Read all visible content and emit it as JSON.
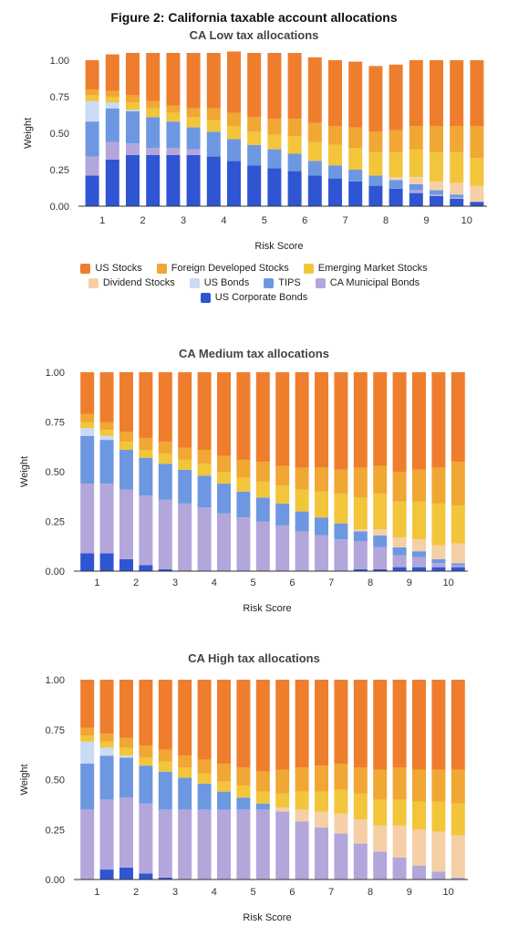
{
  "figure_title": "Figure 2: California taxable account allocations",
  "legend": [
    {
      "name": "US Stocks",
      "color": "#EE7E2E"
    },
    {
      "name": "Foreign Developed Stocks",
      "color": "#F0A733"
    },
    {
      "name": "Emerging Market Stocks",
      "color": "#F2C53B"
    },
    {
      "name": "Dividend Stocks",
      "color": "#F5CFA5"
    },
    {
      "name": "US Bonds",
      "color": "#CBDAF5"
    },
    {
      "name": "TIPS",
      "color": "#6D98E1"
    },
    {
      "name": "CA Municipal Bonds",
      "color": "#B3A6DB"
    },
    {
      "name": "US Corporate Bonds",
      "color": "#2F55D3"
    }
  ],
  "chart_data": [
    {
      "type": "bar",
      "stacked": true,
      "title": "CA Low tax allocations",
      "xlabel": "Risk Score",
      "ylabel": "Weight",
      "ylim": [
        0,
        1
      ],
      "yticks": [
        "0.00",
        "0.25",
        "0.50",
        "0.75",
        "1.00"
      ],
      "xtick_labels": [
        "1",
        "2",
        "3",
        "4",
        "5",
        "6",
        "7",
        "8",
        "9",
        "10"
      ],
      "bar_count": 20,
      "series": [
        {
          "name": "US Corporate Bonds",
          "values": [
            0.21,
            0.32,
            0.35,
            0.35,
            0.35,
            0.35,
            0.34,
            0.31,
            0.28,
            0.26,
            0.24,
            0.21,
            0.19,
            0.17,
            0.14,
            0.12,
            0.09,
            0.07,
            0.05,
            0.03
          ]
        },
        {
          "name": "CA Municipal Bonds",
          "values": [
            0.13,
            0.12,
            0.08,
            0.05,
            0.05,
            0.04,
            0,
            0,
            0,
            0,
            0,
            0,
            0,
            0,
            0,
            0,
            0.02,
            0.01,
            0.01,
            0
          ]
        },
        {
          "name": "TIPS",
          "values": [
            0.24,
            0.23,
            0.22,
            0.21,
            0.18,
            0.15,
            0.17,
            0.15,
            0.14,
            0.13,
            0.12,
            0.1,
            0.09,
            0.08,
            0.07,
            0.06,
            0.04,
            0.03,
            0.02,
            0
          ]
        },
        {
          "name": "US Bonds",
          "values": [
            0.14,
            0.04,
            0.01,
            0,
            0,
            0,
            0,
            0,
            0,
            0,
            0,
            0,
            0,
            0,
            0,
            0,
            0,
            0,
            0,
            0
          ]
        },
        {
          "name": "Dividend Stocks",
          "values": [
            0,
            0,
            0,
            0,
            0,
            0,
            0,
            0,
            0,
            0,
            0,
            0,
            0,
            0,
            0,
            0.02,
            0.05,
            0.06,
            0.08,
            0.11
          ]
        },
        {
          "name": "Emerging Market Stocks",
          "values": [
            0.04,
            0.04,
            0.05,
            0.06,
            0.06,
            0.07,
            0.08,
            0.09,
            0.09,
            0.1,
            0.12,
            0.13,
            0.14,
            0.15,
            0.16,
            0.17,
            0.19,
            0.2,
            0.21,
            0.19
          ]
        },
        {
          "name": "Foreign Developed Stocks",
          "values": [
            0.04,
            0.04,
            0.05,
            0.05,
            0.05,
            0.06,
            0.08,
            0.09,
            0.1,
            0.11,
            0.12,
            0.13,
            0.13,
            0.14,
            0.14,
            0.15,
            0.16,
            0.18,
            0.18,
            0.22
          ]
        },
        {
          "name": "US Stocks",
          "values": [
            0.2,
            0.25,
            0.29,
            0.33,
            0.36,
            0.38,
            0.38,
            0.42,
            0.44,
            0.45,
            0.45,
            0.45,
            0.45,
            0.45,
            0.45,
            0.45,
            0.45,
            0.45,
            0.45,
            0.45
          ]
        }
      ]
    },
    {
      "type": "bar",
      "stacked": true,
      "title": "CA Medium tax allocations",
      "xlabel": "Risk Score",
      "ylabel": "Weight",
      "ylim": [
        0,
        1
      ],
      "yticks": [
        "0.00",
        "0.25",
        "0.50",
        "0.75",
        "1.00"
      ],
      "xtick_labels": [
        "1",
        "2",
        "3",
        "4",
        "5",
        "6",
        "7",
        "8",
        "9",
        "10"
      ],
      "bar_count": 20,
      "series": [
        {
          "name": "US Corporate Bonds",
          "values": [
            0.09,
            0.09,
            0.06,
            0.03,
            0.01,
            0,
            0,
            0,
            0,
            0,
            0,
            0,
            0,
            0,
            0.01,
            0.01,
            0.02,
            0.02,
            0.02,
            0.02
          ]
        },
        {
          "name": "CA Municipal Bonds",
          "values": [
            0.35,
            0.35,
            0.35,
            0.35,
            0.35,
            0.34,
            0.32,
            0.29,
            0.27,
            0.25,
            0.23,
            0.2,
            0.18,
            0.16,
            0.14,
            0.11,
            0.06,
            0.05,
            0.02,
            0.01
          ]
        },
        {
          "name": "TIPS",
          "values": [
            0.24,
            0.22,
            0.2,
            0.19,
            0.18,
            0.17,
            0.16,
            0.15,
            0.13,
            0.12,
            0.11,
            0.1,
            0.09,
            0.08,
            0.05,
            0.06,
            0.04,
            0.03,
            0.02,
            0.01
          ]
        },
        {
          "name": "US Bonds",
          "values": [
            0.04,
            0.02,
            0,
            0,
            0,
            0,
            0,
            0,
            0,
            0,
            0,
            0,
            0,
            0,
            0,
            0,
            0,
            0,
            0,
            0
          ]
        },
        {
          "name": "Dividend Stocks",
          "values": [
            0,
            0,
            0,
            0,
            0,
            0,
            0,
            0,
            0,
            0,
            0,
            0,
            0,
            0,
            0.01,
            0.03,
            0.05,
            0.06,
            0.07,
            0.1
          ]
        },
        {
          "name": "Emerging Market Stocks",
          "values": [
            0.03,
            0.03,
            0.04,
            0.04,
            0.05,
            0.05,
            0.06,
            0.06,
            0.07,
            0.08,
            0.09,
            0.11,
            0.13,
            0.15,
            0.16,
            0.18,
            0.18,
            0.19,
            0.21,
            0.19
          ]
        },
        {
          "name": "Foreign Developed Stocks",
          "values": [
            0.04,
            0.04,
            0.05,
            0.06,
            0.06,
            0.06,
            0.07,
            0.08,
            0.09,
            0.1,
            0.1,
            0.11,
            0.12,
            0.12,
            0.15,
            0.14,
            0.15,
            0.16,
            0.18,
            0.22
          ]
        },
        {
          "name": "US Stocks",
          "values": [
            0.21,
            0.25,
            0.3,
            0.33,
            0.35,
            0.38,
            0.39,
            0.42,
            0.44,
            0.45,
            0.47,
            0.48,
            0.48,
            0.49,
            0.48,
            0.47,
            0.5,
            0.49,
            0.48,
            0.45
          ]
        }
      ]
    },
    {
      "type": "bar",
      "stacked": true,
      "title": "CA High tax allocations",
      "xlabel": "Risk Score",
      "ylabel": "Weight",
      "ylim": [
        0,
        1
      ],
      "yticks": [
        "0.00",
        "0.25",
        "0.50",
        "0.75",
        "1.00"
      ],
      "xtick_labels": [
        "1",
        "2",
        "3",
        "4",
        "5",
        "6",
        "7",
        "8",
        "9",
        "10"
      ],
      "bar_count": 20,
      "series": [
        {
          "name": "US Corporate Bonds",
          "values": [
            0,
            0.05,
            0.06,
            0.03,
            0.01,
            0,
            0,
            0,
            0,
            0,
            0,
            0,
            0,
            0,
            0,
            0,
            0,
            0,
            0,
            0
          ]
        },
        {
          "name": "CA Municipal Bonds",
          "values": [
            0.35,
            0.35,
            0.35,
            0.35,
            0.34,
            0.35,
            0.35,
            0.35,
            0.35,
            0.35,
            0.34,
            0.29,
            0.26,
            0.23,
            0.18,
            0.14,
            0.11,
            0.07,
            0.04,
            0.01
          ]
        },
        {
          "name": "TIPS",
          "values": [
            0.23,
            0.22,
            0.2,
            0.19,
            0.19,
            0.16,
            0.13,
            0.09,
            0.06,
            0.03,
            0,
            0,
            0,
            0,
            0,
            0,
            0,
            0,
            0,
            0
          ]
        },
        {
          "name": "US Bonds",
          "values": [
            0.11,
            0.04,
            0.01,
            0,
            0,
            0,
            0,
            0,
            0,
            0,
            0,
            0,
            0,
            0,
            0,
            0,
            0,
            0,
            0,
            0
          ]
        },
        {
          "name": "Dividend Stocks",
          "values": [
            0,
            0,
            0,
            0,
            0,
            0,
            0,
            0,
            0,
            0,
            0.02,
            0.06,
            0.08,
            0.1,
            0.12,
            0.13,
            0.16,
            0.18,
            0.2,
            0.21
          ]
        },
        {
          "name": "Emerging Market Stocks",
          "values": [
            0.03,
            0.03,
            0.04,
            0.04,
            0.05,
            0.05,
            0.05,
            0.05,
            0.06,
            0.06,
            0.07,
            0.09,
            0.1,
            0.12,
            0.13,
            0.13,
            0.13,
            0.14,
            0.15,
            0.16
          ]
        },
        {
          "name": "Foreign Developed Stocks",
          "values": [
            0.04,
            0.04,
            0.05,
            0.06,
            0.06,
            0.06,
            0.07,
            0.09,
            0.09,
            0.1,
            0.12,
            0.12,
            0.13,
            0.13,
            0.13,
            0.15,
            0.16,
            0.16,
            0.16,
            0.17
          ]
        },
        {
          "name": "US Stocks",
          "values": [
            0.24,
            0.27,
            0.29,
            0.33,
            0.35,
            0.38,
            0.4,
            0.42,
            0.44,
            0.46,
            0.45,
            0.44,
            0.43,
            0.42,
            0.44,
            0.45,
            0.44,
            0.45,
            0.45,
            0.45
          ]
        }
      ]
    }
  ]
}
